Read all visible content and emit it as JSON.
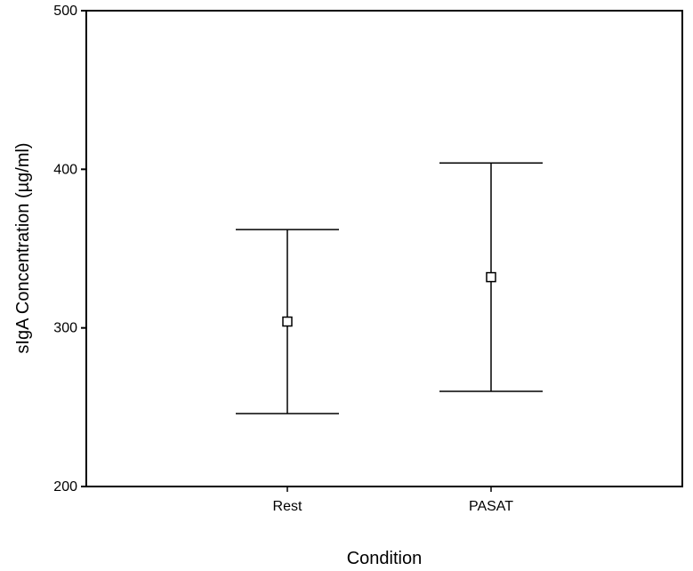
{
  "chart_data": {
    "type": "errorbar",
    "title": "",
    "xlabel": "Condition",
    "ylabel": "sIgA Concentration (µg/ml)",
    "ylim": [
      200,
      500
    ],
    "yticks": [
      200,
      300,
      400,
      500
    ],
    "grid": false,
    "categories": [
      "Rest",
      "PASAT"
    ],
    "series": [
      {
        "means": [
          304,
          332
        ],
        "lower": [
          246,
          260
        ],
        "upper": [
          362,
          404
        ],
        "marker": "open-square",
        "color": "#000000"
      }
    ]
  }
}
